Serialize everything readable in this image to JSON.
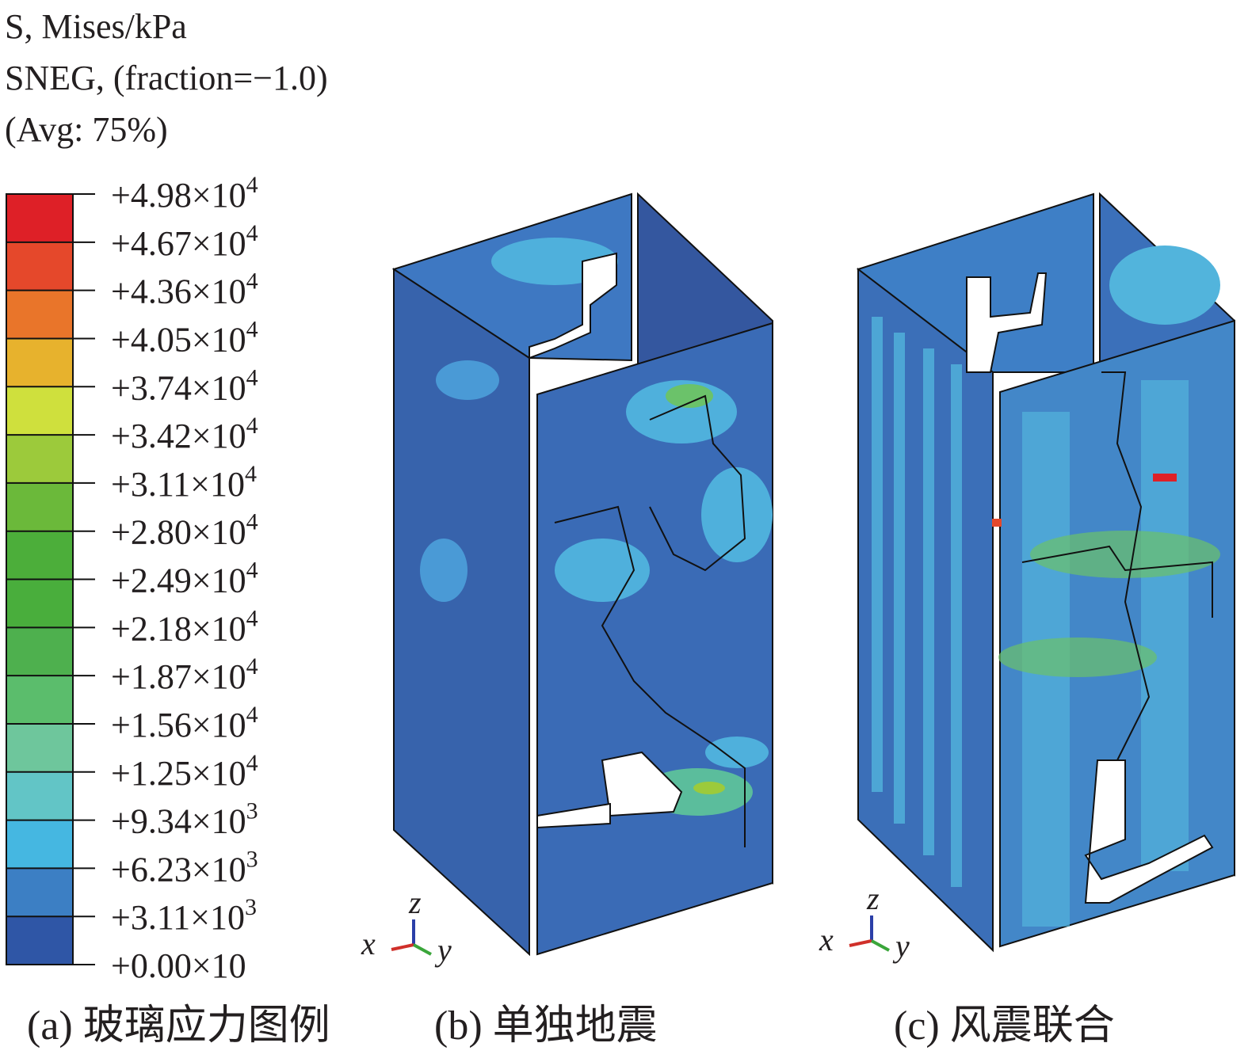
{
  "legend": {
    "title_lines": [
      "S, Mises/kPa",
      "SNEG, (fraction=−1.0)",
      "(Avg: 75%)"
    ],
    "ticks": [
      {
        "base": "+4.98×10",
        "exp": "4"
      },
      {
        "base": "+4.67×10",
        "exp": "4"
      },
      {
        "base": "+4.36×10",
        "exp": "4"
      },
      {
        "base": "+4.05×10",
        "exp": "4"
      },
      {
        "base": "+3.74×10",
        "exp": "4"
      },
      {
        "base": "+3.42×10",
        "exp": "4"
      },
      {
        "base": "+3.11×10",
        "exp": "4"
      },
      {
        "base": "+2.80×10",
        "exp": "4"
      },
      {
        "base": "+2.49×10",
        "exp": "4"
      },
      {
        "base": "+2.18×10",
        "exp": "4"
      },
      {
        "base": "+1.87×10",
        "exp": "4"
      },
      {
        "base": "+1.56×10",
        "exp": "4"
      },
      {
        "base": "+1.25×10",
        "exp": "4"
      },
      {
        "base": "+9.34×10",
        "exp": "3"
      },
      {
        "base": "+6.23×10",
        "exp": "3"
      },
      {
        "base": "+3.11×10",
        "exp": "3"
      },
      {
        "base": "+0.00×10"
      }
    ],
    "colors": [
      "#de2027",
      "#e5482b",
      "#e9752a",
      "#e7b22d",
      "#cfe03d",
      "#9cca3b",
      "#6bb93a",
      "#4cae3a",
      "#49ae3c",
      "#4eb04e",
      "#5bbd6c",
      "#6ec69c",
      "#62c5c6",
      "#45b7e1",
      "#3c7fc4",
      "#2f56a6"
    ]
  },
  "triads": [
    {
      "x": "x",
      "y": "y",
      "z": "z"
    },
    {
      "x": "x",
      "y": "y",
      "z": "z"
    }
  ],
  "captions": [
    "(a) 玻璃应力图例",
    "(b) 单独地震",
    "(c) 风震联合"
  ]
}
